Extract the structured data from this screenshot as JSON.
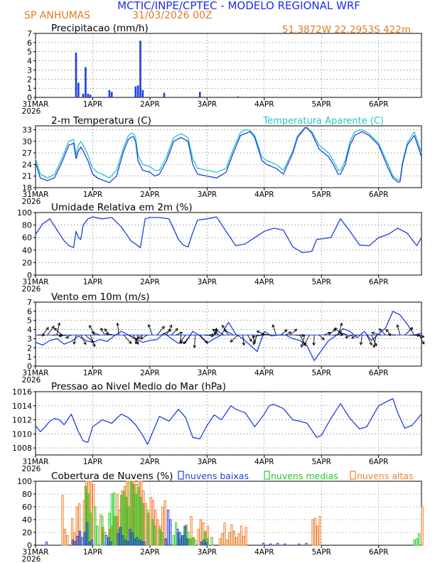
{
  "header": {
    "title": "MCTIC/INPE/CPTEC - MODELO REGIONAL WRF",
    "location": "SP ANHUMAS",
    "run": "31/03/2026 00Z",
    "coords": "51.3872W 22.2953S 422m"
  },
  "colors": {
    "title": "#1b2ee8",
    "location": "#e07b1f",
    "series": "#1e3fe0",
    "apparent": "#20c8c0",
    "low": "#1e3fe0",
    "mid": "#22cc22",
    "high": "#f08030",
    "grid": "#666666"
  },
  "time_axis": {
    "range_hours": [
      0,
      162
    ],
    "ticks": [
      {
        "hour": 0,
        "label": "31MAR",
        "sub": "2026"
      },
      {
        "hour": 24,
        "label": "1APR",
        "sub": ""
      },
      {
        "hour": 48,
        "label": "2APR",
        "sub": ""
      },
      {
        "hour": 72,
        "label": "3APR",
        "sub": ""
      },
      {
        "hour": 96,
        "label": "4APR",
        "sub": ""
      },
      {
        "hour": 120,
        "label": "5APR",
        "sub": ""
      },
      {
        "hour": 144,
        "label": "6APR",
        "sub": ""
      }
    ]
  },
  "chart_data": [
    {
      "type": "bar",
      "title": "Precipitacao (mm/h)",
      "ylim": [
        0,
        7
      ],
      "yticks": [
        0,
        1,
        2,
        3,
        4,
        5,
        6,
        7
      ],
      "x_hours": [
        17,
        18,
        20,
        21,
        22,
        23,
        31,
        32,
        42,
        43,
        44,
        45,
        54,
        69,
        85
      ],
      "values": [
        4.9,
        1.6,
        0.4,
        3.3,
        0.4,
        0.3,
        0.8,
        0.6,
        1.2,
        1.3,
        6.2,
        0.8,
        0.5,
        0.6,
        0.1
      ]
    },
    {
      "type": "line",
      "title": "2-m Temperatura (C)",
      "legend_right": "Temperatura Aparente (C)",
      "ylim": [
        18,
        34
      ],
      "yticks": [
        18,
        21,
        24,
        27,
        30,
        33
      ],
      "series": [
        {
          "name": "2-m Temperatura (C)",
          "x": [
            0,
            2,
            5,
            8,
            11,
            14,
            16,
            17,
            18,
            19,
            20,
            22,
            24,
            26,
            28,
            31,
            34,
            37,
            39,
            40,
            41,
            42,
            43,
            45,
            48,
            50,
            52,
            55,
            58,
            61,
            64,
            66,
            68,
            72,
            76,
            80,
            83,
            86,
            88,
            90,
            92,
            95,
            97,
            101,
            104,
            108,
            110,
            112,
            113,
            114,
            116,
            119,
            121,
            123,
            125,
            127,
            128,
            130,
            132,
            134,
            137,
            140,
            144,
            148,
            150,
            152,
            153,
            154,
            156,
            159,
            162
          ],
          "values": [
            24.5,
            20.5,
            19.8,
            20.6,
            24.5,
            29,
            29.5,
            25.5,
            27.5,
            28.5,
            27.5,
            25,
            21.5,
            20.5,
            20,
            19.3,
            21,
            27.5,
            30.5,
            31,
            31.2,
            30,
            25,
            22.5,
            22,
            21,
            21.5,
            25,
            30,
            31,
            30,
            24,
            21.5,
            21,
            20.5,
            22,
            27,
            31.5,
            32,
            32.5,
            31,
            25,
            24,
            23,
            21.5,
            27,
            31,
            32.5,
            33.5,
            33.5,
            32,
            28,
            27,
            26,
            24,
            21.5,
            21.5,
            24,
            29,
            31.5,
            32.5,
            31.5,
            29,
            23,
            20.5,
            19.5,
            19.5,
            24,
            29,
            31.5,
            26
          ]
        },
        {
          "name": "Temperatura Aparente (C)",
          "x": [
            0,
            2,
            5,
            8,
            11,
            14,
            16,
            17,
            18,
            19,
            20,
            22,
            24,
            26,
            28,
            31,
            34,
            37,
            39,
            40,
            41,
            42,
            43,
            45,
            48,
            50,
            52,
            55,
            58,
            61,
            64,
            66,
            68,
            72,
            76,
            80,
            83,
            86,
            88,
            90,
            92,
            95,
            97,
            101,
            104,
            108,
            110,
            112,
            113,
            114,
            116,
            119,
            121,
            123,
            125,
            127,
            128,
            130,
            132,
            134,
            137,
            140,
            144,
            148,
            150,
            152,
            153,
            154,
            156,
            159,
            162
          ],
          "values": [
            25.5,
            21.5,
            20.5,
            21.5,
            25.5,
            30,
            30.5,
            26.5,
            29,
            30,
            29,
            26.5,
            23,
            22,
            21.5,
            20.5,
            22.5,
            28.5,
            31.5,
            32,
            32,
            31,
            26.5,
            24,
            23.5,
            22.5,
            22.5,
            26,
            31,
            32,
            31,
            25.5,
            23,
            22.5,
            22,
            23,
            28,
            32.3,
            33,
            32.8,
            31.5,
            26,
            25,
            24,
            22.5,
            27.5,
            31.5,
            32.8,
            33.5,
            33.3,
            32.5,
            29,
            28,
            27,
            25,
            22.5,
            22.5,
            25,
            30,
            32.5,
            33,
            32,
            29.5,
            24,
            21,
            20,
            20,
            24.5,
            29.5,
            32.5,
            27
          ]
        }
      ]
    },
    {
      "type": "line",
      "title": "Umidade Relativa em 2m (%)",
      "ylim": [
        0,
        100
      ],
      "yticks": [
        0,
        20,
        40,
        60,
        80,
        100
      ],
      "series": [
        {
          "name": "Umidade Relativa (%)",
          "x": [
            0,
            3,
            6,
            9,
            12,
            14,
            16,
            17,
            18,
            19,
            20,
            22,
            24,
            28,
            32,
            36,
            40,
            44,
            46,
            48,
            52,
            56,
            60,
            62,
            64,
            66,
            68,
            72,
            76,
            80,
            84,
            88,
            92,
            96,
            100,
            104,
            108,
            112,
            116,
            118,
            120,
            124,
            128,
            132,
            136,
            140,
            144,
            148,
            152,
            156,
            160,
            162
          ],
          "values": [
            65,
            82,
            90,
            72,
            55,
            47,
            44,
            70,
            60,
            57,
            80,
            90,
            93,
            90,
            92,
            77,
            55,
            44,
            90,
            92,
            92,
            90,
            57,
            48,
            45,
            68,
            88,
            90,
            93,
            70,
            47,
            50,
            60,
            70,
            75,
            72,
            45,
            36,
            38,
            57,
            58,
            60,
            90,
            70,
            48,
            47,
            60,
            65,
            75,
            67,
            47,
            60
          ]
        }
      ]
    },
    {
      "type": "line",
      "title": "Vento em 10m (m/s)",
      "ylim": [
        0,
        7
      ],
      "yticks": [
        0,
        1,
        2,
        3,
        4,
        5,
        6,
        7
      ],
      "series": [
        {
          "name": "Vento em 10m (m/s)",
          "x": [
            0,
            3,
            6,
            9,
            12,
            15,
            18,
            21,
            24,
            27,
            30,
            33,
            36,
            39,
            42,
            45,
            48,
            51,
            54,
            57,
            60,
            63,
            66,
            69,
            72,
            75,
            78,
            81,
            84,
            87,
            90,
            93,
            96,
            99,
            102,
            105,
            108,
            111,
            114,
            117,
            120,
            123,
            126,
            129,
            132,
            135,
            138,
            141,
            144,
            147,
            150,
            153,
            156,
            159,
            162
          ],
          "values": [
            2.6,
            2.3,
            2.8,
            3.0,
            2.4,
            2.7,
            3.3,
            2.8,
            2.6,
            2.9,
            2.7,
            3.3,
            3.8,
            3.4,
            3.0,
            2.6,
            2.8,
            2.9,
            3.6,
            3.0,
            2.5,
            2.6,
            3.8,
            3.3,
            2.5,
            3.0,
            3.4,
            4.8,
            3.5,
            3.0,
            2.3,
            1.6,
            3.8,
            3.3,
            3.4,
            3.4,
            3.0,
            2.8,
            2.2,
            0.6,
            1.7,
            2.8,
            3.3,
            4.1,
            3.8,
            3.1,
            3.8,
            2.8,
            3.5,
            4.2,
            6.0,
            5.6,
            4.6,
            3.4,
            3.6
          ]
        }
      ]
    },
    {
      "type": "line",
      "title": "Pressao ao Nivel Medio do Mar (hPa)",
      "ylim": [
        1007,
        1016
      ],
      "yticks": [
        1008,
        1010,
        1012,
        1014,
        1016
      ],
      "series": [
        {
          "name": "Pressao (hPa)",
          "x": [
            0,
            2,
            4,
            6,
            8,
            10,
            12,
            15,
            18,
            20,
            22,
            24,
            28,
            32,
            34,
            36,
            39,
            42,
            45,
            47,
            48,
            52,
            56,
            60,
            63,
            66,
            69,
            72,
            75,
            78,
            82,
            84,
            88,
            92,
            96,
            98,
            100,
            104,
            108,
            111,
            114,
            118,
            120,
            124,
            128,
            132,
            136,
            139,
            142,
            144,
            148,
            150,
            152,
            155,
            158,
            162
          ],
          "values": [
            1011.2,
            1010.3,
            1011.0,
            1011.8,
            1012.2,
            1012.0,
            1011.3,
            1012.8,
            1010.3,
            1009.0,
            1008.8,
            1011.0,
            1012.0,
            1011.5,
            1012.2,
            1012.8,
            1012.3,
            1011.3,
            1009.8,
            1008.5,
            1009.3,
            1012.5,
            1011.8,
            1013.5,
            1012.3,
            1009.5,
            1009.3,
            1011.2,
            1012.7,
            1012.0,
            1014.0,
            1013.5,
            1013.0,
            1011.0,
            1012.8,
            1014.0,
            1014.2,
            1013.6,
            1012.0,
            1011.8,
            1011.5,
            1009.5,
            1009.8,
            1012.2,
            1014.3,
            1012.2,
            1010.7,
            1011.0,
            1012.8,
            1014.0,
            1014.7,
            1015.0,
            1013.0,
            1010.8,
            1011.2,
            1012.8
          ]
        }
      ]
    },
    {
      "type": "bar",
      "title": "Cobertura de Nuvens (%)",
      "ylim": [
        0,
        100
      ],
      "yticks": [
        0,
        20,
        40,
        60,
        80,
        100
      ],
      "legend": [
        "nuvens baixas",
        "nuvens medias",
        "nuvens altas"
      ],
      "series": [
        {
          "name": "nuvens altas",
          "x": [
            11,
            12,
            13,
            15,
            16,
            17,
            18,
            20,
            21,
            22,
            23,
            24,
            27,
            28,
            31,
            32,
            33,
            34,
            35,
            36,
            37,
            38,
            39,
            40,
            41,
            42,
            43,
            44,
            45,
            46,
            47,
            48,
            49,
            50,
            51,
            52,
            53,
            54,
            62,
            63,
            64,
            65,
            66,
            68,
            69,
            70,
            71,
            72,
            77,
            78,
            79,
            80,
            81,
            82,
            83,
            84,
            85,
            86,
            87,
            88,
            116,
            117,
            118,
            119,
            162
          ],
          "values": [
            78,
            25,
            15,
            42,
            20,
            60,
            65,
            70,
            100,
            100,
            100,
            95,
            48,
            28,
            25,
            30,
            45,
            80,
            55,
            85,
            92,
            100,
            100,
            100,
            100,
            95,
            100,
            100,
            85,
            65,
            50,
            75,
            70,
            55,
            40,
            30,
            60,
            70,
            15,
            32,
            10,
            45,
            12,
            25,
            40,
            35,
            22,
            30,
            10,
            18,
            35,
            8,
            20,
            32,
            22,
            12,
            18,
            30,
            14,
            28,
            40,
            42,
            30,
            45,
            60
          ]
        },
        {
          "name": "nuvens medias",
          "x": [
            21,
            22,
            23,
            25,
            26,
            28,
            29,
            31,
            32,
            33,
            34,
            35,
            36,
            37,
            38,
            39,
            40,
            41,
            42,
            43,
            44,
            45,
            47,
            49,
            50,
            52,
            53,
            58,
            59,
            60,
            61,
            62,
            63,
            64,
            65,
            66,
            67,
            71,
            72,
            74,
            159,
            160,
            161
          ],
          "values": [
            92,
            80,
            50,
            60,
            30,
            45,
            20,
            50,
            80,
            82,
            45,
            25,
            78,
            84,
            75,
            60,
            100,
            95,
            80,
            90,
            75,
            65,
            55,
            40,
            30,
            25,
            20,
            15,
            35,
            20,
            10,
            15,
            30,
            20,
            10,
            12,
            8,
            20,
            10,
            12,
            8,
            10,
            18
          ]
        },
        {
          "name": "nuvens baixas",
          "x": [
            5,
            16,
            17,
            18,
            19,
            20,
            21,
            22,
            23,
            24,
            30,
            31,
            32,
            35,
            36,
            37,
            38,
            39,
            40,
            41,
            42,
            43,
            44,
            45,
            46,
            55,
            56,
            57,
            60,
            61,
            62,
            63,
            64,
            70,
            71,
            72,
            96,
            99,
            102,
            105,
            111,
            114
          ],
          "values": [
            5,
            8,
            6,
            14,
            22,
            12,
            20,
            35,
            5,
            8,
            15,
            12,
            5,
            18,
            28,
            15,
            8,
            6,
            25,
            20,
            10,
            12,
            8,
            6,
            5,
            10,
            55,
            40,
            25,
            20,
            15,
            30,
            10,
            5,
            8,
            4,
            3,
            2,
            3,
            2,
            2,
            3
          ]
        }
      ]
    }
  ]
}
